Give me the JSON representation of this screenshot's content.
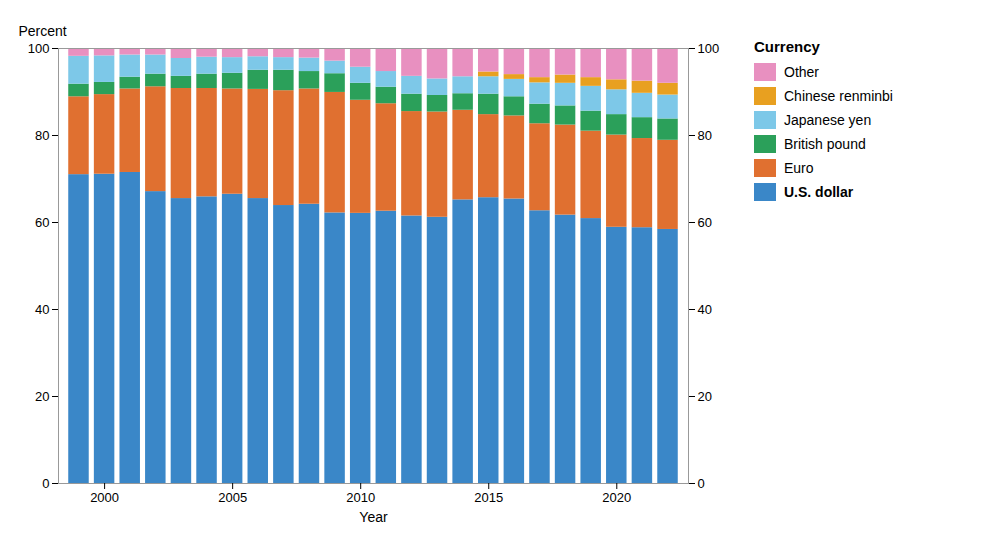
{
  "chart_data": {
    "type": "bar",
    "stacked": true,
    "xlabel": "Year",
    "ylabel": "Percent",
    "legend_title": "Currency",
    "legend": "right",
    "grid": false,
    "x": [
      1999,
      2000,
      2001,
      2002,
      2003,
      2004,
      2005,
      2006,
      2007,
      2008,
      2009,
      2010,
      2011,
      2012,
      2013,
      2014,
      2015,
      2016,
      2017,
      2018,
      2019,
      2020,
      2021,
      2022
    ],
    "series": [
      {
        "name": "U.S. dollar",
        "color": "#3A87C8",
        "values": [
          71.0,
          71.1,
          71.5,
          67.1,
          65.5,
          65.9,
          66.5,
          65.5,
          63.9,
          64.2,
          62.2,
          62.1,
          62.6,
          61.5,
          61.2,
          65.2,
          65.7,
          65.4,
          62.7,
          61.7,
          60.9,
          58.9,
          58.8,
          58.4
        ]
      },
      {
        "name": "Euro",
        "color": "#E07030",
        "values": [
          17.9,
          18.3,
          19.2,
          24.1,
          25.3,
          24.9,
          24.2,
          25.1,
          26.4,
          26.5,
          27.7,
          26.0,
          24.7,
          24.0,
          24.2,
          20.6,
          19.1,
          19.1,
          20.0,
          20.7,
          20.1,
          21.2,
          20.5,
          20.5
        ]
      },
      {
        "name": "British pound",
        "color": "#2BA05A",
        "values": [
          2.9,
          2.8,
          2.7,
          2.9,
          2.8,
          3.3,
          3.6,
          4.4,
          4.7,
          4.0,
          4.3,
          3.9,
          3.8,
          4.0,
          3.8,
          3.8,
          4.7,
          4.4,
          4.5,
          4.4,
          4.6,
          4.7,
          4.8,
          4.9
        ]
      },
      {
        "name": "Japanese yen",
        "color": "#7DC8E8",
        "values": [
          6.4,
          6.1,
          5.1,
          4.4,
          4.1,
          3.9,
          3.6,
          3.1,
          2.9,
          3.1,
          2.9,
          3.7,
          3.6,
          4.1,
          3.8,
          3.9,
          4.0,
          4.0,
          4.9,
          5.2,
          5.7,
          5.7,
          5.6,
          5.5
        ]
      },
      {
        "name": "Chinese renminbi",
        "color": "#E8A020",
        "values": [
          0.0,
          0.0,
          0.0,
          0.0,
          0.0,
          0.0,
          0.0,
          0.0,
          0.0,
          0.0,
          0.0,
          0.0,
          0.0,
          0.0,
          0.0,
          0.0,
          1.1,
          1.1,
          1.2,
          1.9,
          2.0,
          2.3,
          2.8,
          2.7
        ]
      },
      {
        "name": "Other",
        "color": "#E890C0",
        "values": [
          1.8,
          1.7,
          1.5,
          1.5,
          2.3,
          2.0,
          2.1,
          1.9,
          2.1,
          2.2,
          2.9,
          4.3,
          5.3,
          6.4,
          7.0,
          6.5,
          5.4,
          6.0,
          6.7,
          6.1,
          6.7,
          7.2,
          7.5,
          8.0
        ]
      }
    ],
    "xlim": [
      1998.2,
      2022.8
    ],
    "xticks": [
      2000,
      2005,
      2010,
      2015,
      2020
    ],
    "ylim": [
      0,
      100
    ],
    "yticks": [
      0,
      20,
      40,
      60,
      80,
      100
    ],
    "y2lim": [
      0,
      100
    ],
    "y2ticks": [
      0,
      20,
      40,
      60,
      80,
      100
    ]
  }
}
